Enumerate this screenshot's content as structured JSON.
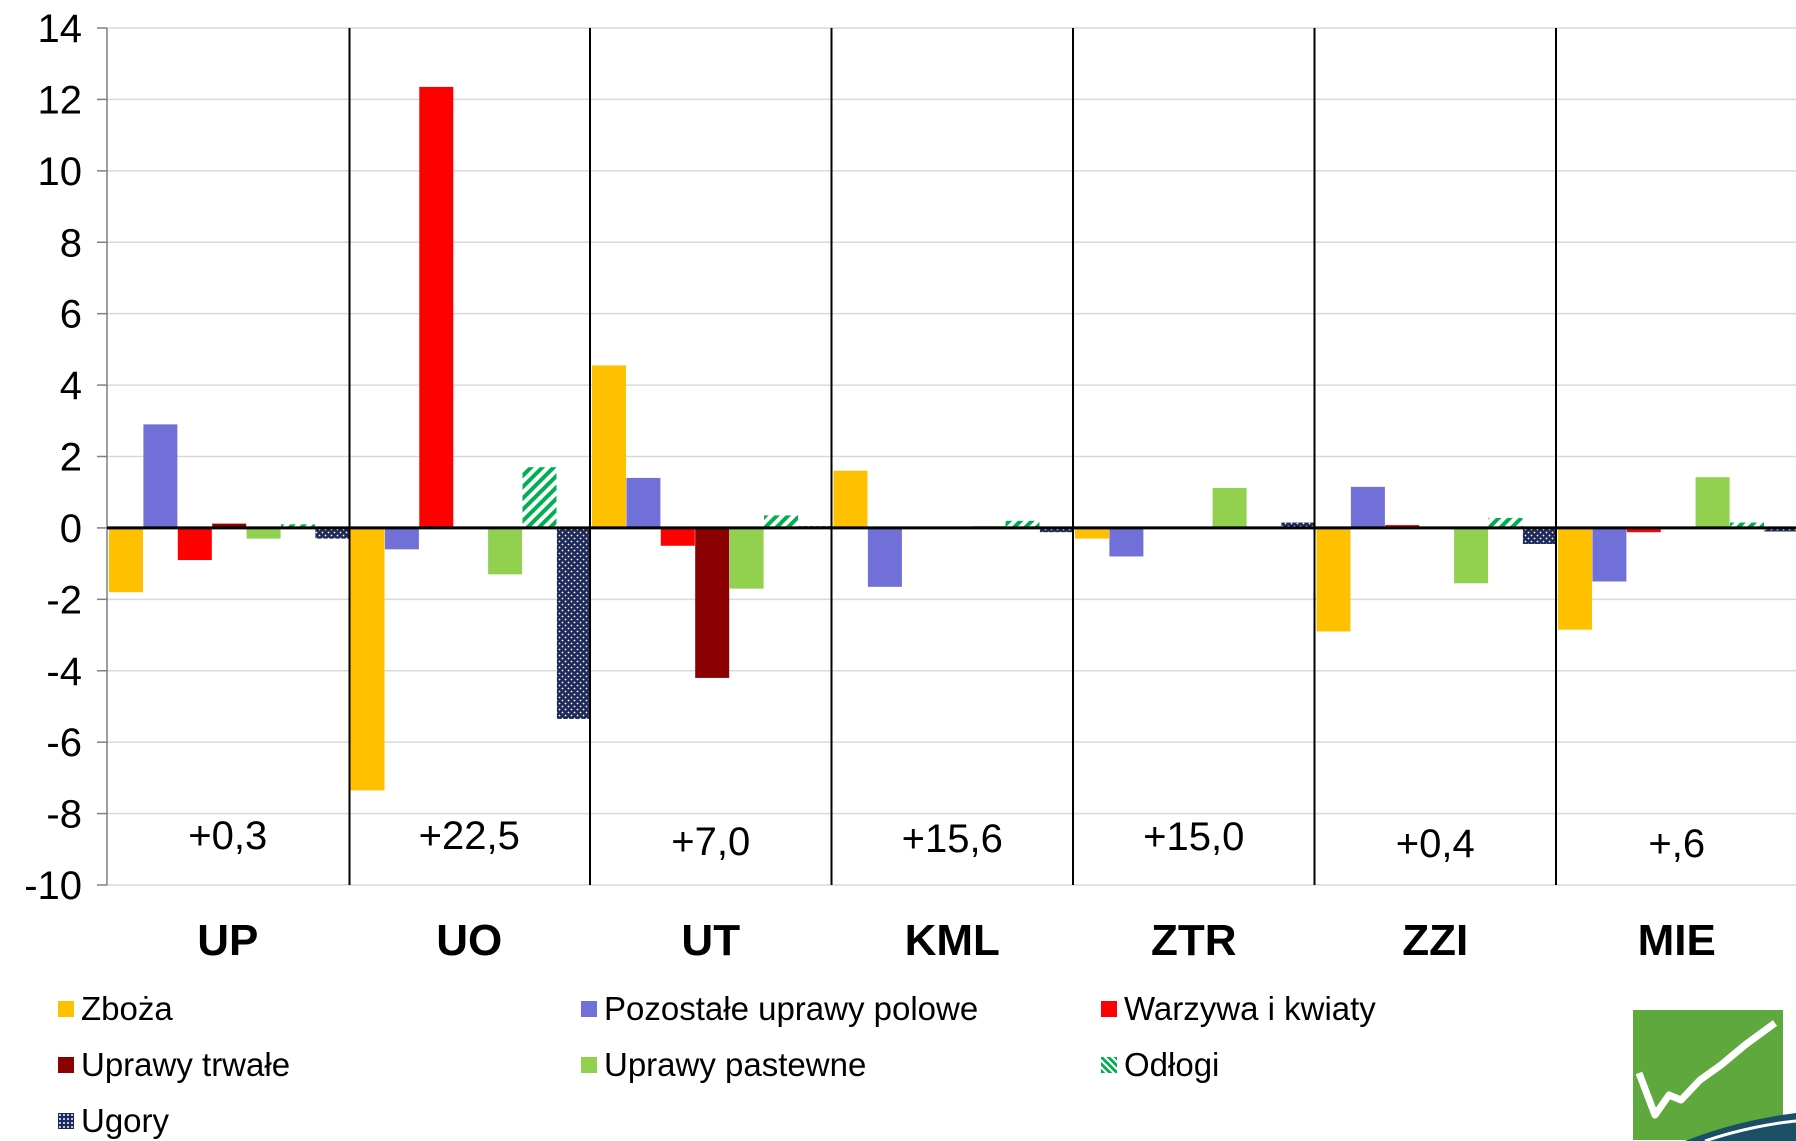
{
  "chart_data": {
    "type": "bar",
    "title": "",
    "xlabel": "",
    "ylabel": "",
    "ylim": [
      -10,
      14
    ],
    "yticks": [
      "14",
      "12",
      "10",
      "8",
      "6",
      "4",
      "2",
      "0",
      "-2",
      "-4",
      "-6",
      "-8",
      "-10"
    ],
    "ytick_values": [
      14,
      12,
      10,
      8,
      6,
      4,
      2,
      0,
      -2,
      -4,
      -6,
      -8,
      -10
    ],
    "grid": true,
    "legend_position": "bottom",
    "categories": [
      "UP",
      "UO",
      "UT",
      "KML",
      "ZTR",
      "ZZI",
      "MIE"
    ],
    "group_totals": [
      "+0,3",
      "+22,5",
      "+7,0",
      "+15,6",
      "+15,0",
      "+0,4",
      "+,6"
    ],
    "series": [
      {
        "name": "Zboża",
        "color": "#FFC000",
        "pattern": "solid",
        "values": [
          -1.8,
          -7.35,
          4.55,
          1.6,
          -0.3,
          -2.9,
          -2.85
        ]
      },
      {
        "name": "Pozostałe uprawy polowe",
        "color": "#7070D8",
        "pattern": "solid",
        "values": [
          2.9,
          -0.6,
          1.4,
          -1.65,
          -0.8,
          1.15,
          -1.5
        ]
      },
      {
        "name": "Warzywa i kwiaty",
        "color": "#FF0000",
        "pattern": "solid",
        "values": [
          -0.9,
          12.35,
          -0.5,
          0,
          0,
          0.08,
          -0.12
        ]
      },
      {
        "name": "Uprawy trwałe",
        "color": "#8B0000",
        "pattern": "solid",
        "values": [
          0.12,
          0,
          -4.2,
          0,
          0,
          0,
          0
        ]
      },
      {
        "name": "Uprawy pastewne",
        "color": "#92D050",
        "pattern": "solid",
        "values": [
          -0.3,
          -1.3,
          -1.7,
          0.05,
          1.12,
          -1.55,
          1.42
        ]
      },
      {
        "name": "Odłogi",
        "color": "#00B050",
        "pattern": "hatch",
        "values": [
          0.1,
          1.7,
          0.35,
          0.2,
          0,
          0.28,
          0.15
        ]
      },
      {
        "name": "Ugory",
        "color": "#1F2A5C",
        "pattern": "dots",
        "values": [
          -0.3,
          -5.35,
          0.05,
          -0.12,
          0.15,
          -0.45,
          -0.1
        ]
      }
    ]
  }
}
